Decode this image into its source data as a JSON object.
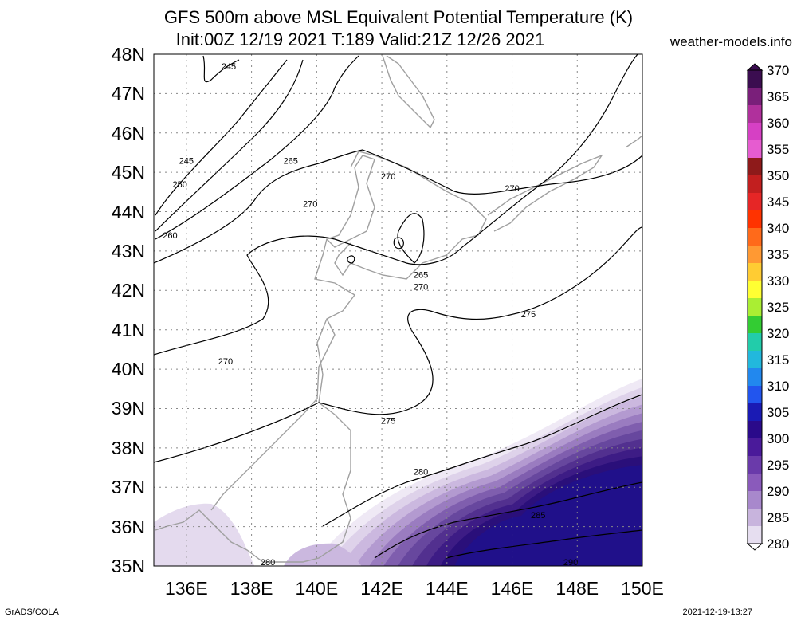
{
  "title": {
    "line1": "GFS 500m above MSL Equivalent Potential Temperature (K)",
    "line2": "Init:00Z 12/19 2021 T:189 Valid:21Z 12/26 2021",
    "site": "weather-models.info"
  },
  "axes": {
    "lat_labels": [
      "48N",
      "47N",
      "46N",
      "45N",
      "44N",
      "43N",
      "42N",
      "41N",
      "40N",
      "39N",
      "38N",
      "37N",
      "36N",
      "35N"
    ],
    "lon_labels": [
      "136E",
      "138E",
      "140E",
      "142E",
      "144E",
      "146E",
      "148E",
      "150E"
    ],
    "lat_range": [
      35,
      48
    ],
    "lon_range": [
      135,
      150
    ],
    "grid": "dotted"
  },
  "colorbar": {
    "labels": [
      "370",
      "365",
      "360",
      "355",
      "350",
      "345",
      "340",
      "335",
      "330",
      "325",
      "320",
      "315",
      "310",
      "305",
      "300",
      "295",
      "290",
      "285",
      "280"
    ],
    "colors": [
      "#3b0d50",
      "#7a1f7a",
      "#b0309c",
      "#d640c4",
      "#e65cd0",
      "#8e1a1a",
      "#c21f1f",
      "#e62626",
      "#ff3300",
      "#ff6a1a",
      "#ff9933",
      "#ffcc33",
      "#ffff33",
      "#aaee33",
      "#33cc33",
      "#22ccaa",
      "#22b8dd",
      "#2288ee",
      "#2255ee",
      "#1a1ab4",
      "#2a0a8a",
      "#4a1a9a",
      "#6a3aaa",
      "#8a5abb",
      "#a888cc",
      "#c8b4dd",
      "#e6def0"
    ]
  },
  "contours": [
    {
      "label": "245",
      "lat": 47.7,
      "lon": 137.3
    },
    {
      "label": "245",
      "lon": 136.0,
      "lat": 45.3
    },
    {
      "label": "250",
      "lon": 135.8,
      "lat": 44.7
    },
    {
      "label": "260",
      "lon": 135.5,
      "lat": 43.4
    },
    {
      "label": "265",
      "lon": 139.2,
      "lat": 45.3
    },
    {
      "label": "270",
      "lon": 139.8,
      "lat": 44.2
    },
    {
      "label": "270",
      "lon": 142.2,
      "lat": 44.9
    },
    {
      "label": "270",
      "lon": 146.0,
      "lat": 44.6
    },
    {
      "label": "265",
      "lon": 143.2,
      "lat": 42.4
    },
    {
      "label": "270",
      "lon": 143.2,
      "lat": 42.1
    },
    {
      "label": "275",
      "lon": 146.5,
      "lat": 41.4
    },
    {
      "label": "270",
      "lon": 137.2,
      "lat": 40.2
    },
    {
      "label": "275",
      "lon": 142.2,
      "lat": 38.7
    },
    {
      "label": "280",
      "lon": 143.2,
      "lat": 37.4
    },
    {
      "label": "285",
      "lon": 146.8,
      "lat": 36.3
    },
    {
      "label": "280",
      "lon": 138.5,
      "lat": 35.1
    },
    {
      "label": "290",
      "lon": 147.8,
      "lat": 35.1
    }
  ],
  "footer": {
    "left": "GrADS/COLA",
    "right": "2021-12-19-13:27"
  }
}
